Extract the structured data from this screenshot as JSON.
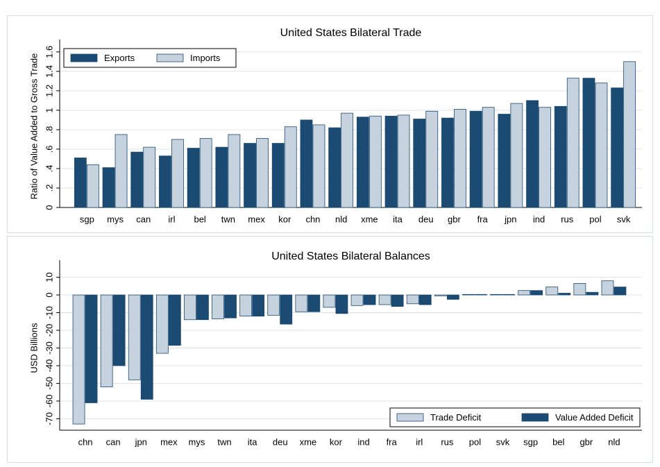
{
  "chart_data": [
    {
      "type": "bar",
      "title": "United States Bilateral Trade",
      "y_label": "Ratio of Value Added to Gross Trade",
      "categories": [
        "sgp",
        "mys",
        "can",
        "irl",
        "bel",
        "twn",
        "mex",
        "kor",
        "chn",
        "nld",
        "xme",
        "ita",
        "deu",
        "gbr",
        "fra",
        "jpn",
        "ind",
        "rus",
        "pol",
        "svk"
      ],
      "series": [
        {
          "name": "Exports",
          "color": "#1b4a72",
          "values": [
            0.51,
            0.41,
            0.57,
            0.53,
            0.61,
            0.62,
            0.66,
            0.66,
            0.9,
            0.82,
            0.93,
            0.94,
            0.91,
            0.92,
            0.99,
            0.96,
            1.1,
            1.04,
            1.33,
            1.23
          ]
        },
        {
          "name": "Imports",
          "color": "#c6d2de",
          "values": [
            0.44,
            0.75,
            0.62,
            0.7,
            0.71,
            0.75,
            0.71,
            0.83,
            0.85,
            0.97,
            0.94,
            0.95,
            0.99,
            1.01,
            1.03,
            1.07,
            1.03,
            1.33,
            1.28,
            1.5
          ]
        }
      ],
      "ylim": [
        0,
        1.67
      ],
      "yticks": [
        0,
        {
          "value": 0.2,
          "label": ".2"
        },
        {
          "value": 0.4,
          "label": ".4"
        },
        {
          "value": 0.6,
          "label": ".6"
        },
        {
          "value": 0.8,
          "label": ".8"
        },
        1,
        1.2,
        1.4,
        1.6
      ],
      "grid": true,
      "legend": "top-left"
    },
    {
      "type": "bar",
      "title": "United States Bilateral Balances",
      "y_label": "USD Billions",
      "categories": [
        "chn",
        "can",
        "jpn",
        "mex",
        "mys",
        "twn",
        "ita",
        "deu",
        "xme",
        "kor",
        "ind",
        "fra",
        "irl",
        "rus",
        "pol",
        "svk",
        "sgp",
        "bel",
        "gbr",
        "nld"
      ],
      "series": [
        {
          "name": "Trade Deficit",
          "color": "#c6d2de",
          "values": [
            -73,
            -52,
            -48,
            -33,
            -14,
            -13.5,
            -12,
            -11.5,
            -9.5,
            -7,
            -6,
            -5.5,
            -5,
            -0.5,
            0.3,
            0.3,
            2.5,
            4.5,
            6.5,
            8
          ]
        },
        {
          "name": "Value Added Deficit",
          "color": "#1b4a72",
          "values": [
            -61,
            -40,
            -59,
            -28.5,
            -14,
            -13,
            -12,
            -16.5,
            -9.5,
            -10.5,
            -5.5,
            -6.5,
            -5.5,
            -2.5,
            0.3,
            0.3,
            2.5,
            1,
            1.5,
            4.5
          ]
        }
      ],
      "ylim": [
        -76.5,
        16.5
      ],
      "yticks": [
        10,
        0,
        -10,
        -20,
        -30,
        -40,
        -50,
        -60,
        -70
      ],
      "grid": true,
      "legend": "bottom-right"
    }
  ]
}
